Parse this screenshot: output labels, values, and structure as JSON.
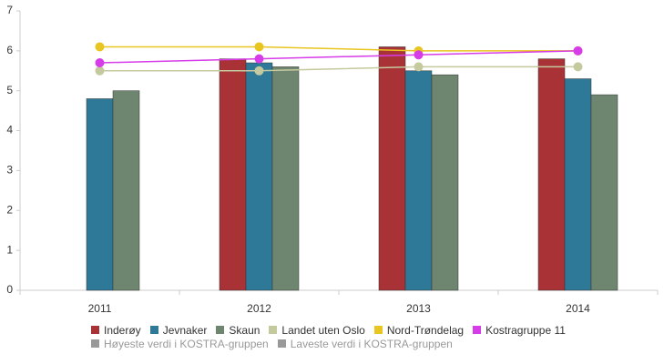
{
  "chart_data": {
    "type": "bar",
    "categories": [
      "2011",
      "2012",
      "2013",
      "2014"
    ],
    "ylim": [
      0,
      7
    ],
    "yticks": [
      0,
      1,
      2,
      3,
      4,
      5,
      6,
      7
    ],
    "series": [
      {
        "name": "Inderøy",
        "color": "#a83236",
        "mark": "bar",
        "values": [
          null,
          5.8,
          6.1,
          5.8
        ]
      },
      {
        "name": "Jevnaker",
        "color": "#2e7898",
        "mark": "bar",
        "values": [
          4.8,
          5.7,
          5.5,
          5.3
        ]
      },
      {
        "name": "Skaun",
        "color": "#6e8570",
        "mark": "bar",
        "values": [
          5.0,
          5.6,
          5.4,
          4.9
        ]
      },
      {
        "name": "Landet uten Oslo",
        "color": "#c5c99e",
        "mark": "line",
        "values": [
          5.5,
          5.5,
          5.6,
          5.6
        ]
      },
      {
        "name": "Nord-Trøndelag",
        "color": "#e8c520",
        "mark": "line",
        "values": [
          6.1,
          6.1,
          6.0,
          6.0
        ]
      },
      {
        "name": "Kostragruppe 11",
        "color": "#d63ce8",
        "mark": "line",
        "values": [
          5.7,
          5.8,
          5.9,
          6.0
        ]
      },
      {
        "name": "Høyeste verdi i KOSTRA-gruppen",
        "color": "#999999",
        "mark": "line",
        "values": [
          null,
          null,
          null,
          null
        ]
      },
      {
        "name": "Laveste verdi i KOSTRA-gruppen",
        "color": "#999999",
        "mark": "line",
        "values": [
          null,
          null,
          null,
          null
        ]
      }
    ]
  }
}
